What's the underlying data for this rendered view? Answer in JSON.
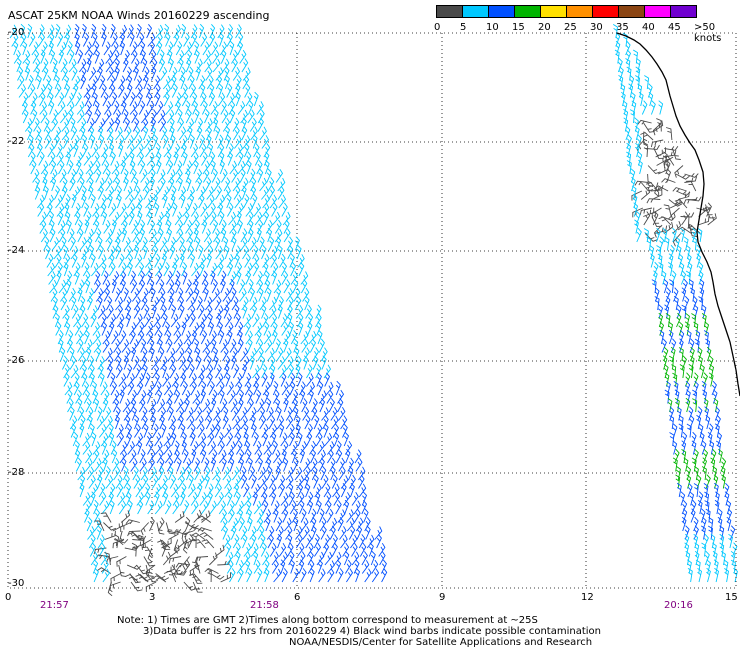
{
  "header": {
    "title": "ASCAT 25KM NOAA Winds 20160229 ascending"
  },
  "legend": {
    "bins": [
      {
        "label": "0",
        "color": "#4a4a4a"
      },
      {
        "label": "5",
        "color": "#00c8ff"
      },
      {
        "label": "10",
        "color": "#0050ff"
      },
      {
        "label": "15",
        "color": "#00b400"
      },
      {
        "label": "20",
        "color": "#ffe000"
      },
      {
        "label": "25",
        "color": "#ff9000"
      },
      {
        "label": "30",
        "color": "#ff0000"
      },
      {
        "label": "35",
        "color": "#8b4513"
      },
      {
        "label": "40",
        "color": "#ff00ff"
      },
      {
        "label": "45",
        "color": "#7000d0"
      },
      {
        "label": ">50 knots",
        "color": "#5000a0"
      }
    ]
  },
  "map": {
    "lat_labels": [
      "-20",
      "-22",
      "-24",
      "-26",
      "-28",
      "-30"
    ],
    "lon_labels": [
      "0",
      "3",
      "6",
      "9",
      "12",
      "15"
    ],
    "time_labels": [
      "21:57",
      "21:58",
      "20:16"
    ],
    "coastline_color": "#000000",
    "colors": {
      "calm": "#4a4a4a",
      "light": "#00c8ff",
      "moderate": "#0050ff",
      "fresh": "#00b400"
    }
  },
  "notes": {
    "line1": "Note: 1) Times are GMT 2)Times along bottom correspond to measurement at ~25S",
    "line2": "3)Data buffer is 22 hrs from 20160229 4) Black wind barbs indicate possible contamination",
    "line3": "NOAA/NESDIS/Center for Satellite Applications and Research"
  }
}
